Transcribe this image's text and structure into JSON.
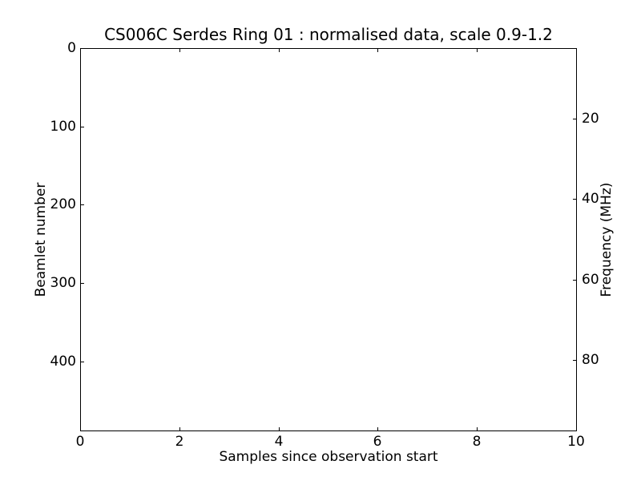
{
  "colors": {
    "foreground": "#000000",
    "background": "#ffffff"
  },
  "chart_data": {
    "type": "heatmap",
    "title": "CS006C Serdes Ring 01 : normalised data, scale 0.9-1.2",
    "xlabel": "Samples since observation start",
    "ylabel_left": "Beamlet number",
    "ylabel_right": "Frequency (MHz)",
    "x_ticks": [
      0,
      2,
      4,
      6,
      8,
      10
    ],
    "x_range": [
      0,
      10
    ],
    "y_left_ticks": [
      0,
      100,
      200,
      300,
      400
    ],
    "y_left_range": [
      0,
      488
    ],
    "y_left_inverted": true,
    "y_right_ticks": [
      20,
      40,
      60,
      80
    ],
    "y_right_range": [
      2.5,
      97.5
    ],
    "grid": false,
    "legend": null,
    "values": []
  }
}
